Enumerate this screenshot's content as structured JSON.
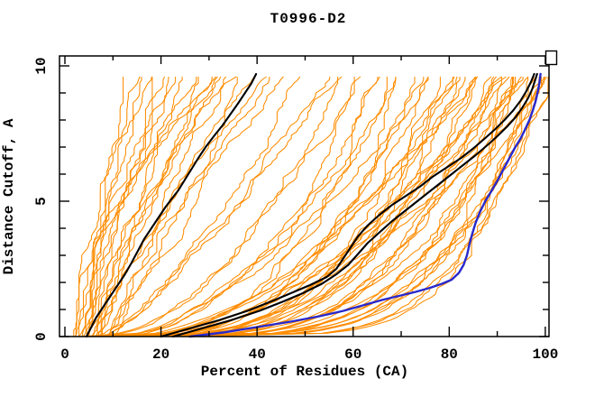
{
  "page": {
    "background": "#ffffff"
  },
  "chart_data": {
    "type": "line",
    "title": "T0996-D2",
    "xlabel": "Percent of Residues (CA)",
    "ylabel": "Distance Cutoff, A",
    "xlim": [
      0,
      100
    ],
    "ylim": [
      0,
      10
    ],
    "x_major_ticks": [
      0,
      20,
      40,
      60,
      80,
      100
    ],
    "x_minor_ticks": [
      10,
      30,
      50,
      70,
      90
    ],
    "y_major_ticks": [
      0,
      5,
      10
    ],
    "y_minor_ticks": [
      1,
      2,
      3,
      4,
      6,
      7,
      8,
      9
    ],
    "grid": false,
    "legend": "none",
    "colors": {
      "ensemble": "#ff8c00",
      "highlight": "#000000",
      "best": "#2828cc",
      "frame": "#000000",
      "background": "#ffffff"
    },
    "curve_y_max": 9.7,
    "series": [
      {
        "name": "highlight-black-left",
        "color": "#000000",
        "width": 2.1,
        "points": [
          [
            4.5,
            0
          ],
          [
            5.5,
            0.35
          ],
          [
            6.5,
            0.7
          ],
          [
            8,
            1.1
          ],
          [
            9.5,
            1.5
          ],
          [
            11,
            1.9
          ],
          [
            12.5,
            2.3
          ],
          [
            13.8,
            2.7
          ],
          [
            15,
            3.1
          ],
          [
            16.5,
            3.6
          ],
          [
            18,
            4.0
          ],
          [
            19.5,
            4.4
          ],
          [
            21,
            4.8
          ],
          [
            22.3,
            5.1
          ],
          [
            23.6,
            5.4
          ],
          [
            25,
            5.8
          ],
          [
            26.4,
            6.2
          ],
          [
            27.8,
            6.6
          ],
          [
            29.3,
            7.0
          ],
          [
            31,
            7.4
          ],
          [
            32.8,
            7.8
          ],
          [
            34.4,
            8.2
          ],
          [
            36,
            8.6
          ],
          [
            37.5,
            9.0
          ],
          [
            38.8,
            9.35
          ],
          [
            39.8,
            9.7
          ]
        ]
      },
      {
        "name": "highlight-black-mid-1",
        "color": "#000000",
        "width": 2.1,
        "points": [
          [
            20,
            0
          ],
          [
            26,
            0.3
          ],
          [
            32,
            0.6
          ],
          [
            38,
            0.95
          ],
          [
            43,
            1.3
          ],
          [
            47,
            1.6
          ],
          [
            51,
            1.9
          ],
          [
            54.5,
            2.2
          ],
          [
            56.5,
            2.5
          ],
          [
            58,
            2.9
          ],
          [
            59.5,
            3.3
          ],
          [
            61,
            3.7
          ],
          [
            63,
            4.1
          ],
          [
            65.5,
            4.5
          ],
          [
            68,
            4.85
          ],
          [
            71,
            5.2
          ],
          [
            74,
            5.55
          ],
          [
            76.5,
            5.9
          ],
          [
            79.5,
            6.25
          ],
          [
            82.5,
            6.6
          ],
          [
            85,
            6.95
          ],
          [
            87.3,
            7.3
          ],
          [
            89.5,
            7.65
          ],
          [
            91.5,
            8.0
          ],
          [
            93.3,
            8.35
          ],
          [
            94.8,
            8.7
          ],
          [
            96,
            9.05
          ],
          [
            97,
            9.4
          ],
          [
            97.7,
            9.7
          ]
        ]
      },
      {
        "name": "highlight-black-mid-2",
        "color": "#000000",
        "width": 2.1,
        "points": [
          [
            22.5,
            0
          ],
          [
            28.5,
            0.3
          ],
          [
            34.5,
            0.6
          ],
          [
            40.5,
            0.95
          ],
          [
            45.5,
            1.3
          ],
          [
            49.5,
            1.6
          ],
          [
            53.5,
            1.95
          ],
          [
            56.5,
            2.3
          ],
          [
            59,
            2.65
          ],
          [
            61,
            3.05
          ],
          [
            63,
            3.45
          ],
          [
            65.5,
            3.85
          ],
          [
            68,
            4.25
          ],
          [
            70.5,
            4.6
          ],
          [
            73,
            4.95
          ],
          [
            75.5,
            5.3
          ],
          [
            78,
            5.65
          ],
          [
            80.5,
            6.0
          ],
          [
            83,
            6.35
          ],
          [
            85.5,
            6.7
          ],
          [
            87.8,
            7.05
          ],
          [
            90,
            7.4
          ],
          [
            92,
            7.75
          ],
          [
            93.8,
            8.1
          ],
          [
            95.2,
            8.45
          ],
          [
            96.4,
            8.8
          ],
          [
            97.3,
            9.15
          ],
          [
            98.3,
            9.7
          ]
        ]
      },
      {
        "name": "best-model-blue",
        "color": "#2828cc",
        "width": 2.4,
        "points": [
          [
            26,
            0
          ],
          [
            33,
            0.15
          ],
          [
            40,
            0.35
          ],
          [
            47,
            0.55
          ],
          [
            53,
            0.75
          ],
          [
            58,
            0.95
          ],
          [
            62,
            1.15
          ],
          [
            66,
            1.35
          ],
          [
            69.5,
            1.5
          ],
          [
            73,
            1.65
          ],
          [
            76,
            1.8
          ],
          [
            78.5,
            1.95
          ],
          [
            80.5,
            2.1
          ],
          [
            82,
            2.35
          ],
          [
            83,
            2.65
          ],
          [
            83.7,
            3.0
          ],
          [
            84.2,
            3.4
          ],
          [
            84.8,
            3.8
          ],
          [
            85.5,
            4.2
          ],
          [
            86.4,
            4.6
          ],
          [
            87.5,
            5.0
          ],
          [
            88.7,
            5.35
          ],
          [
            90,
            5.75
          ],
          [
            91.2,
            6.15
          ],
          [
            92.4,
            6.55
          ],
          [
            93.6,
            6.95
          ],
          [
            94.8,
            7.3
          ],
          [
            95.8,
            7.65
          ],
          [
            96.7,
            8.0
          ],
          [
            97.4,
            8.35
          ],
          [
            98,
            8.7
          ],
          [
            98.5,
            9.1
          ],
          [
            98.8,
            9.4
          ],
          [
            99,
            9.7
          ]
        ]
      }
    ],
    "ensemble_curves": [
      [
        2,
        13,
        1.1
      ],
      [
        2.5,
        15,
        0.95
      ],
      [
        3,
        17,
        1.25
      ],
      [
        3.5,
        19,
        0.9
      ],
      [
        4,
        21,
        1.1
      ],
      [
        4.5,
        23,
        1.35
      ],
      [
        5,
        25,
        1.0
      ],
      [
        5.5,
        27,
        1.2
      ],
      [
        6,
        29,
        0.95
      ],
      [
        6.5,
        31,
        1.15
      ],
      [
        7,
        33,
        1.3
      ],
      [
        7.5,
        35,
        1.0
      ],
      [
        8,
        37,
        1.2
      ],
      [
        8.5,
        39,
        0.9
      ],
      [
        9,
        41,
        1.1
      ],
      [
        9.5,
        43,
        1.25
      ],
      [
        10,
        45,
        1.05
      ],
      [
        3,
        24,
        1.6
      ],
      [
        4,
        30,
        1.8
      ],
      [
        6,
        36,
        1.7
      ],
      [
        2.5,
        20,
        2.0
      ],
      [
        5,
        33,
        2.1
      ],
      [
        6,
        50,
        0.7
      ],
      [
        8,
        55,
        0.75
      ],
      [
        9,
        58,
        0.85
      ],
      [
        3,
        60,
        0.35
      ],
      [
        4,
        65,
        0.3
      ],
      [
        5,
        70,
        0.28
      ],
      [
        6,
        75,
        0.25
      ],
      [
        7,
        80,
        0.24
      ],
      [
        8,
        85,
        0.3
      ],
      [
        9,
        90,
        0.26
      ],
      [
        10,
        95,
        0.24
      ],
      [
        11,
        100,
        0.22
      ],
      [
        12,
        68,
        0.4
      ],
      [
        13,
        72,
        0.35
      ],
      [
        14,
        78,
        0.3
      ],
      [
        15,
        82,
        0.28
      ],
      [
        16,
        88,
        0.26
      ],
      [
        17,
        92,
        0.24
      ],
      [
        18,
        96,
        0.3
      ],
      [
        19,
        99,
        0.26
      ],
      [
        20,
        74,
        0.45
      ],
      [
        21,
        80,
        0.4
      ],
      [
        22,
        86,
        0.35
      ],
      [
        23,
        90,
        0.3
      ],
      [
        24,
        94,
        0.28
      ],
      [
        25,
        98,
        0.26
      ],
      [
        26,
        84,
        0.5
      ],
      [
        27,
        89,
        0.45
      ],
      [
        28,
        93,
        0.4
      ],
      [
        29,
        97,
        0.35
      ],
      [
        30,
        100,
        0.3
      ],
      [
        12,
        87,
        0.55
      ],
      [
        14,
        91,
        0.5
      ],
      [
        16,
        95,
        0.45
      ],
      [
        5,
        58,
        0.5
      ],
      [
        7,
        62,
        0.55
      ],
      [
        9,
        66,
        0.5
      ],
      [
        11,
        70,
        0.55
      ],
      [
        13,
        76,
        0.6
      ],
      [
        15,
        81,
        0.55
      ],
      [
        17,
        86,
        0.6
      ],
      [
        19,
        91,
        0.55
      ],
      [
        21,
        96,
        0.6
      ],
      [
        23,
        99,
        0.55
      ],
      [
        18,
        97,
        0.18
      ],
      [
        22,
        100,
        0.2
      ],
      [
        26,
        100,
        0.22
      ],
      [
        15,
        94,
        0.2
      ]
    ]
  }
}
